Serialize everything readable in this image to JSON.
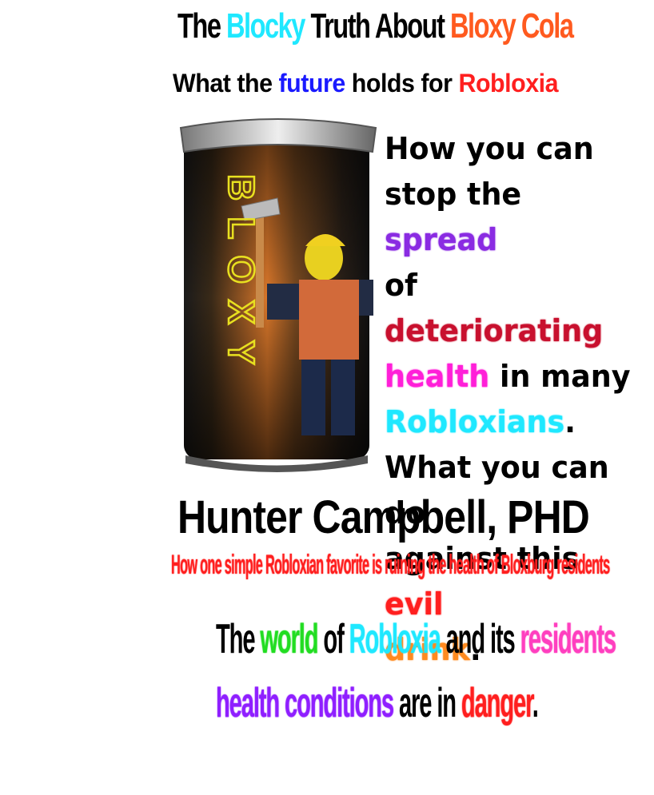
{
  "title": {
    "t1": "The ",
    "t2": "Blocky",
    "t3": " Truth About ",
    "t4": "Bloxy Cola"
  },
  "subtitle": {
    "s1": "What the ",
    "s2": "future",
    "s3": " holds for ",
    "s4": "Robloxia"
  },
  "can_label": "BLOXY",
  "body": {
    "b1": "How you can",
    "b2a": "stop the ",
    "b2b": "spread",
    "b3a": "of ",
    "b3b": "deteriorating",
    "b4a": "health",
    "b4b": " in many",
    "b5a": "Robloxians",
    "b5b": ".",
    "b6": "What you can do",
    "b7a": "against this ",
    "b7b": "evil",
    "b8a": "drink",
    "b8b": "."
  },
  "author": "Hunter Campbell, PHD",
  "tagline": "How one simple Robloxian favorite is ruining the health of Bloxburg residents",
  "teaser": {
    "l1a": "The ",
    "l1b": "world",
    "l1c": " of ",
    "l1d": "Robloxia",
    "l1e": " and its ",
    "l1f": "residents",
    "l2a": "health conditions",
    "l2b": " are in ",
    "l2c": "danger",
    "l2d": "."
  },
  "colors": {
    "cyan": "#1fe8ff",
    "orange": "#ff5a1f",
    "blue": "#1a1aff",
    "red": "#ff1f1f",
    "purple": "#8a2be2",
    "magenta": "#ff1fd8",
    "green": "#22dd22",
    "pink": "#ff3fbf"
  }
}
